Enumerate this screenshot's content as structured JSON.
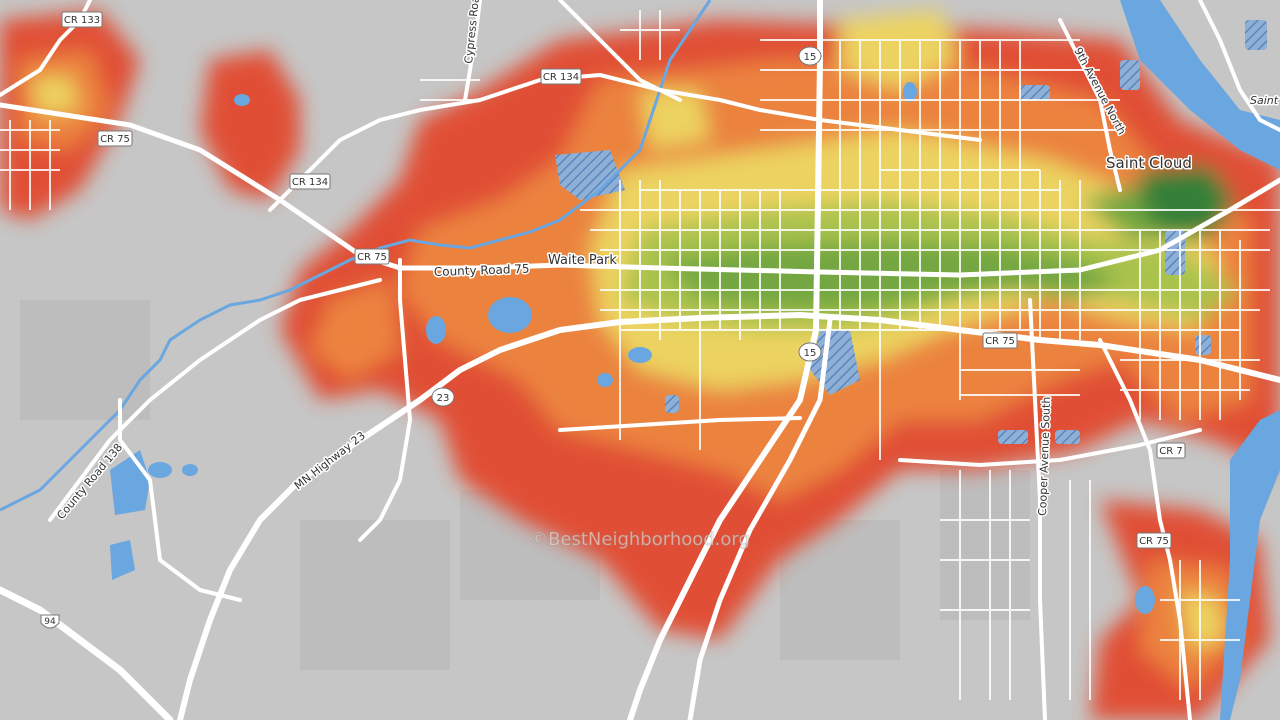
{
  "map": {
    "place_labels": {
      "waite_park": "Waite Park",
      "saint_cloud": "Saint Cloud",
      "saint_cloud_partial": "Saint"
    },
    "road_labels": {
      "cypress_road": "Cypress Road",
      "county_road_75": "County Road 75",
      "mn_highway_23": "MN Highway 23",
      "county_road_138": "County Road 138",
      "ninth_avenue_north": "9th Avenue North",
      "cooper_avenue_south": "Cooper Avenue South"
    },
    "shields": {
      "cr133": "CR 133",
      "cr134_top": "CR 134",
      "cr134_left": "CR 134",
      "cr75_left": "CR 75",
      "cr75_mid": "CR 75",
      "cr75_center": "CR 75",
      "cr75_bottom": "CR 75",
      "cr7": "CR 7",
      "hwy15_top": "15",
      "hwy15_mid": "15",
      "hwy23": "23",
      "i94": "94"
    },
    "watermark": "©BestNeighborhood.org",
    "colors": {
      "background": "#c6c6c6",
      "water": "#6aa6df",
      "roads": "#ffffff",
      "heat_red": "#e24a2f",
      "heat_orange": "#ee8038",
      "heat_yellow": "#efd45c",
      "heat_lightgreen": "#a9c347",
      "heat_green": "#6fa63a",
      "heat_darkgreen": "#2e7d32"
    }
  }
}
